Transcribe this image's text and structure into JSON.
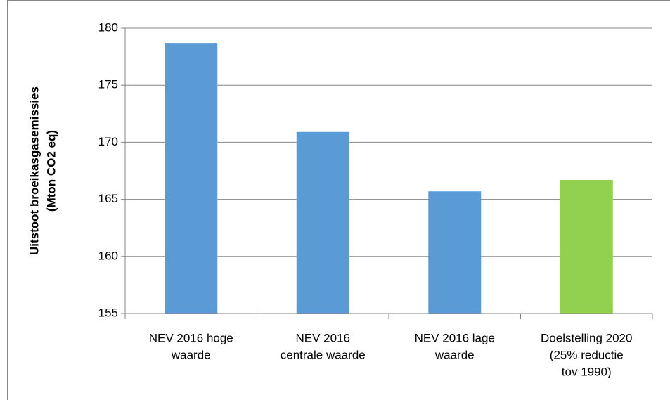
{
  "chart_data": {
    "type": "bar",
    "ylabel": [
      "Uitstoot broeikasgasemissies",
      "(Mton CO2 eq)"
    ],
    "categories": [
      [
        "NEV 2016 hoge",
        "waarde"
      ],
      [
        "NEV 2016",
        "centrale waarde"
      ],
      [
        "NEV 2016 lage",
        "waarde"
      ],
      [
        "Doelstelling 2020",
        "(25% reductie",
        "tov 1990)"
      ]
    ],
    "values": [
      178.7,
      170.9,
      165.7,
      166.7
    ],
    "colors": [
      "#5b9bd5",
      "#5b9bd5",
      "#5b9bd5",
      "#92d050"
    ],
    "ylim": [
      155,
      180
    ],
    "yticks": [
      155,
      160,
      165,
      170,
      175,
      180
    ],
    "grid": true
  }
}
